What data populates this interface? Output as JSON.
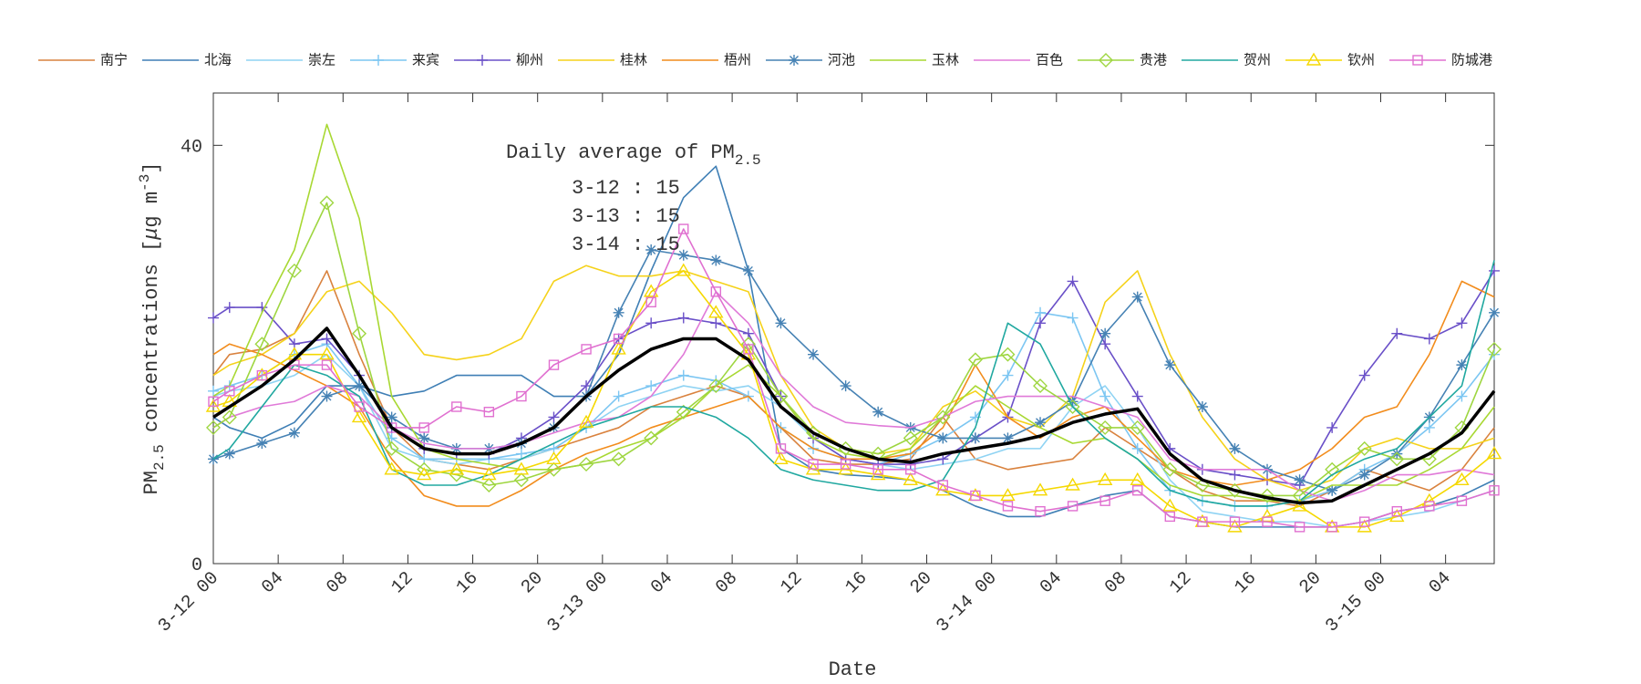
{
  "chart_data": {
    "type": "line",
    "x_label": "Date",
    "y_label": {
      "main": "PM",
      "sub": "2.5",
      "rest": " concentrations [",
      "mu": "μ",
      "unit": "g m",
      "sup": "-3",
      "end": "]"
    },
    "annotation": {
      "title": "Daily average of PM",
      "title_sub": "2.5",
      "lines": [
        "3-12 : 15",
        "3-13 : 15",
        "3-14 : 15"
      ]
    },
    "xlim": [
      0,
      79
    ],
    "ylim": [
      0,
      45
    ],
    "yticks": [
      0,
      40
    ],
    "xticks": [
      {
        "value": 0,
        "label": "3-12 00"
      },
      {
        "value": 4,
        "label": "04"
      },
      {
        "value": 8,
        "label": "08"
      },
      {
        "value": 12,
        "label": "12"
      },
      {
        "value": 16,
        "label": "16"
      },
      {
        "value": 20,
        "label": "20"
      },
      {
        "value": 24,
        "label": "3-13 00"
      },
      {
        "value": 28,
        "label": "04"
      },
      {
        "value": 32,
        "label": "08"
      },
      {
        "value": 36,
        "label": "12"
      },
      {
        "value": 40,
        "label": "16"
      },
      {
        "value": 44,
        "label": "20"
      },
      {
        "value": 48,
        "label": "3-14 00"
      },
      {
        "value": 52,
        "label": "04"
      },
      {
        "value": 56,
        "label": "08"
      },
      {
        "value": 60,
        "label": "12"
      },
      {
        "value": 64,
        "label": "16"
      },
      {
        "value": 68,
        "label": "20"
      },
      {
        "value": 72,
        "label": "3-15 00"
      },
      {
        "value": 76,
        "label": "04"
      }
    ],
    "x": [
      0,
      1,
      3,
      5,
      7,
      9,
      11,
      13,
      15,
      17,
      19,
      21,
      23,
      25,
      27,
      29,
      31,
      33,
      35,
      37,
      39,
      41,
      43,
      45,
      47,
      49,
      51,
      53,
      55,
      57,
      59,
      61,
      63,
      65,
      67,
      69,
      71,
      73,
      75,
      77,
      79
    ],
    "series": [
      {
        "name": "南宁",
        "color": "#d9823e",
        "marker": "none",
        "values": [
          18,
          20,
          20.5,
          22,
          28,
          20,
          13,
          10,
          9.5,
          9,
          10,
          11,
          12,
          13,
          15,
          16,
          17,
          16,
          13,
          10,
          9.5,
          9.5,
          10,
          14,
          10,
          9,
          9.5,
          10,
          13,
          11,
          9,
          7,
          6,
          6,
          5.5,
          7,
          9,
          8,
          7,
          9,
          13
        ]
      },
      {
        "name": "北海",
        "color": "#3f7fb5",
        "marker": "none",
        "values": [
          14,
          13,
          12,
          13.5,
          17,
          17,
          16,
          16.5,
          18,
          18,
          18,
          16,
          16,
          20,
          28,
          35,
          38,
          28,
          11,
          9,
          8.5,
          8.3,
          8,
          7,
          5.5,
          4.5,
          4.5,
          5.5,
          6.5,
          7,
          4.5,
          4,
          3.5,
          3.5,
          3.5,
          3.5,
          4,
          5,
          5.5,
          6.5,
          8
        ]
      },
      {
        "name": "崇左",
        "color": "#8fd3f3",
        "marker": "none",
        "values": [
          16,
          16.5,
          17,
          18,
          20,
          17,
          11,
          10,
          9.5,
          10,
          10,
          11,
          13,
          15,
          16,
          17,
          16.5,
          17,
          15,
          12,
          10,
          9.5,
          9,
          9.5,
          10,
          11,
          11,
          15,
          17,
          13,
          8,
          5,
          4.5,
          4,
          4,
          3.5,
          4,
          4.5,
          5,
          6,
          7
        ]
      },
      {
        "name": "来宾",
        "color": "#7cc6f2",
        "marker": "+",
        "values": [
          16.5,
          17,
          18,
          20,
          21,
          17,
          12,
          10,
          10,
          10,
          10.5,
          11,
          13,
          16,
          17,
          18,
          17.5,
          16,
          13,
          11,
          10,
          9.5,
          10.5,
          12,
          14,
          18,
          24,
          23.5,
          16,
          11,
          7,
          6,
          5.5,
          5.5,
          6,
          7,
          9,
          10.5,
          13,
          16,
          20
        ]
      },
      {
        "name": "柳州",
        "color": "#6a50c8",
        "marker": "+",
        "values": [
          23.5,
          24.5,
          24.5,
          21,
          21.5,
          18,
          13,
          11,
          10.5,
          10.5,
          12,
          14,
          17,
          21.5,
          23,
          23.5,
          23,
          22,
          16,
          12,
          10,
          9.5,
          9.5,
          10,
          12,
          14,
          23,
          27,
          21,
          16,
          11,
          9,
          8.5,
          8,
          7.5,
          13,
          18,
          22,
          21.5,
          23,
          28
        ]
      },
      {
        "name": "桂林",
        "color": "#f5d21a",
        "marker": "none",
        "values": [
          18,
          19,
          20,
          22,
          26,
          27,
          24,
          20,
          19.5,
          20,
          21.5,
          27,
          28.5,
          27.5,
          27.5,
          28,
          27,
          26,
          18,
          13,
          11,
          10.5,
          11,
          15,
          16.5,
          14,
          13,
          16,
          25,
          28,
          20,
          14,
          10,
          8,
          7,
          8,
          11,
          12,
          11,
          11,
          12
        ]
      },
      {
        "name": "梧州",
        "color": "#f28c1c",
        "marker": "none",
        "values": [
          20,
          21,
          20,
          18.5,
          17,
          15,
          10,
          6.5,
          5.5,
          5.5,
          7,
          9,
          10.5,
          11.5,
          13,
          14,
          15,
          16,
          13,
          11,
          10,
          10,
          10.5,
          13,
          19,
          14,
          12,
          14,
          15,
          12,
          9,
          8,
          7.5,
          8,
          9,
          11,
          14,
          15,
          20,
          27,
          25.5
        ]
      },
      {
        "name": "河池",
        "color": "#4682b4",
        "marker": "*",
        "values": [
          10,
          10.5,
          11.5,
          12.5,
          16,
          17,
          14,
          12,
          11,
          11,
          11.5,
          13,
          16,
          24,
          30,
          29.5,
          29,
          28,
          23,
          20,
          17,
          14.5,
          13,
          12,
          12,
          12,
          13.5,
          15.5,
          22,
          25.5,
          19,
          15,
          11,
          9,
          8,
          7,
          8.5,
          10.5,
          14,
          19,
          24
        ]
      },
      {
        "name": "玉林",
        "color": "#a8d832",
        "marker": "none",
        "values": [
          16,
          17,
          24,
          30,
          42,
          33,
          16,
          11,
          10,
          9.5,
          9,
          9,
          9.5,
          11,
          12,
          14,
          17,
          19,
          16,
          12,
          10.5,
          10,
          11,
          14,
          17,
          15,
          13,
          11.5,
          12,
          10,
          7.5,
          6.5,
          6.5,
          6,
          6,
          7.5,
          7.5,
          7.5,
          9,
          11,
          15
        ]
      },
      {
        "name": "百色",
        "color": "#e07ad8",
        "marker": "none",
        "values": [
          13,
          14,
          15,
          15.5,
          17,
          16,
          13,
          11.5,
          11,
          11,
          11.5,
          12.5,
          13.5,
          14,
          16,
          20,
          26,
          23,
          18,
          15,
          13.5,
          13.2,
          13,
          14,
          15.5,
          16,
          16,
          16,
          15,
          14,
          10,
          9,
          9,
          9,
          7,
          6,
          7,
          8.5,
          8.5,
          9,
          8.5
        ]
      },
      {
        "name": "贵港",
        "color": "#9ed640",
        "marker": "diamond",
        "values": [
          13,
          14,
          21,
          28,
          34.5,
          22,
          11,
          9,
          8.5,
          7.5,
          8,
          9,
          9.5,
          10,
          12,
          14.5,
          17,
          21,
          16,
          12.5,
          11,
          10.5,
          12,
          14,
          19.5,
          20,
          17,
          15,
          13,
          13,
          9,
          7.5,
          7,
          6.5,
          6.5,
          9,
          11,
          10,
          10,
          13,
          20.5
        ]
      },
      {
        "name": "贺州",
        "color": "#20a8a0",
        "marker": "none",
        "values": [
          10,
          11,
          15,
          19,
          18,
          16,
          9,
          7.5,
          7.5,
          8.5,
          10,
          11.5,
          13,
          14,
          15,
          15,
          14,
          12,
          9,
          8,
          7.5,
          7,
          7,
          8,
          13,
          23,
          21,
          15,
          12,
          10,
          7,
          6,
          5.5,
          5.5,
          6,
          8.5,
          10,
          11,
          14,
          17,
          29
        ]
      },
      {
        "name": "钦州",
        "color": "#f5d800",
        "marker": "triangle",
        "values": [
          15,
          15.5,
          18,
          20,
          20,
          14,
          9,
          8.5,
          9,
          8.5,
          9,
          10,
          13.5,
          20.5,
          26,
          28,
          24,
          20,
          10,
          9,
          9,
          8.5,
          8,
          7,
          6.5,
          6.5,
          7,
          7.5,
          8,
          8,
          5.5,
          4,
          3.5,
          4.5,
          5.5,
          3.5,
          3.5,
          4.5,
          6,
          8,
          10.5
        ]
      },
      {
        "name": "防城港",
        "color": "#e070d0",
        "marker": "square",
        "values": [
          15.5,
          16.5,
          18,
          19,
          19,
          15,
          13,
          13,
          15,
          14.5,
          16,
          19,
          20.5,
          21.5,
          25,
          32,
          26,
          20.5,
          11,
          9.5,
          9.5,
          9,
          9,
          7.5,
          6.5,
          5.5,
          5,
          5.5,
          6,
          7,
          4.5,
          4,
          4,
          4,
          3.5,
          3.5,
          4,
          5,
          5.5,
          6,
          7
        ]
      },
      {
        "color": "#000000",
        "marker": "none",
        "line_width": 3.5,
        "values": [
          14,
          15,
          17,
          19.5,
          22.5,
          18,
          13,
          11,
          10.5,
          10.5,
          11.5,
          13,
          16,
          18.5,
          20.5,
          21.5,
          21.5,
          19.5,
          15,
          12.5,
          11,
          10,
          9.7,
          10.5,
          11,
          11.5,
          12.2,
          13.5,
          14.3,
          14.8,
          10.5,
          8,
          7,
          6.3,
          5.8,
          6,
          7.5,
          9,
          10.5,
          12.5,
          16.5
        ]
      }
    ]
  }
}
